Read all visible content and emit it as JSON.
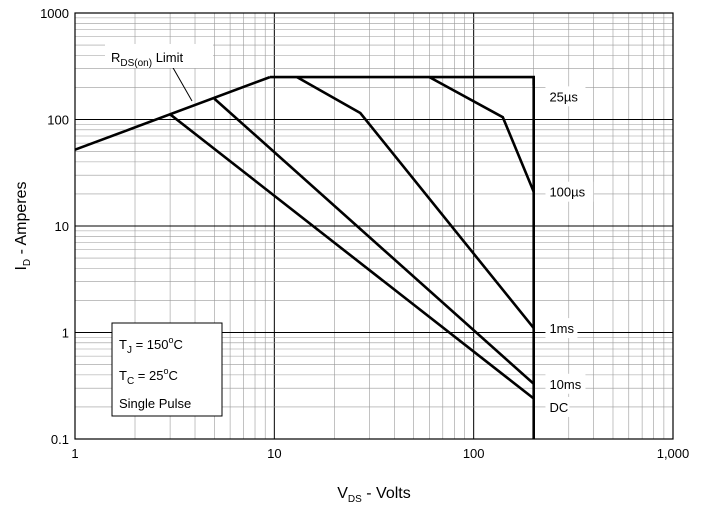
{
  "chart_data": {
    "type": "line",
    "x_scale": "log",
    "y_scale": "log",
    "xlim": [
      1,
      1000
    ],
    "ylim": [
      0.1,
      1000
    ],
    "grid": true,
    "x_ticks": [
      1,
      10,
      100,
      1000
    ],
    "x_tick_labels": [
      "1",
      "10",
      "100",
      "1,000"
    ],
    "y_ticks": [
      0.1,
      1,
      10,
      100,
      1000
    ],
    "y_tick_labels": [
      "0.1",
      "1",
      "10",
      "100",
      "1000"
    ],
    "xlabel": {
      "main": "V",
      "sub": "DS",
      "rest": " - Volts"
    },
    "ylabel": {
      "main": "I",
      "sub": "D",
      "rest": " - Amperes"
    },
    "series": [
      {
        "name": "RDS(on) Limit",
        "x": [
          1,
          9.5
        ],
        "y": [
          52,
          250
        ]
      },
      {
        "name": "25µs",
        "x": [
          9.5,
          200,
          200
        ],
        "y": [
          250,
          250,
          210
        ]
      },
      {
        "name": "100µs",
        "x": [
          60,
          140,
          200
        ],
        "y": [
          250,
          105,
          21
        ]
      },
      {
        "name": "1ms",
        "x": [
          13,
          27,
          200
        ],
        "y": [
          250,
          115,
          1.1
        ]
      },
      {
        "name": "10ms",
        "x": [
          5,
          200
        ],
        "y": [
          157,
          0.33
        ]
      },
      {
        "name": "DC",
        "x": [
          3,
          200
        ],
        "y": [
          112,
          0.24
        ]
      },
      {
        "name": "VDS limit",
        "x": [
          200,
          200
        ],
        "y": [
          250,
          0.1
        ]
      }
    ],
    "curve_labels": [
      {
        "text": "25µs",
        "x": 240,
        "y": 165
      },
      {
        "text": "100µs",
        "x": 240,
        "y": 21
      },
      {
        "text": "1ms",
        "x": 240,
        "y": 1.1
      },
      {
        "text": "10ms",
        "x": 240,
        "y": 0.33
      },
      {
        "text": "DC",
        "x": 240,
        "y": 0.2
      }
    ],
    "rds_label": {
      "main": "R",
      "sub": "DS(on)",
      "rest": " Limit"
    },
    "info_box": {
      "line1": {
        "main": "T",
        "sub": "J",
        "rest": " = 150",
        "sup": "o",
        "unit": "C"
      },
      "line2": {
        "main": "T",
        "sub": "C",
        "rest": " = 25",
        "sup": "o",
        "unit": "C"
      },
      "line3": "Single Pulse"
    }
  }
}
